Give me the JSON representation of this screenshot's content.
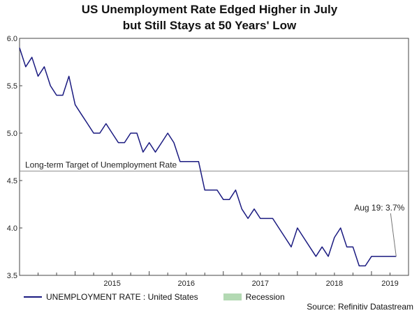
{
  "chart_data": {
    "type": "line",
    "title_lines": [
      "US Unemployment Rate Edged Higher in July",
      "but Still Stays at 50 Years' Low"
    ],
    "series": [
      {
        "name": "UNEMPLOYMENT RATE : United States",
        "color": "#1a1a80",
        "x": [
          2014.25,
          2014.3333,
          2014.4167,
          2014.5,
          2014.5833,
          2014.6667,
          2014.75,
          2014.8333,
          2014.9167,
          2015.0,
          2015.0833,
          2015.1667,
          2015.25,
          2015.3333,
          2015.4167,
          2015.5,
          2015.5833,
          2015.6667,
          2015.75,
          2015.8333,
          2015.9167,
          2016.0,
          2016.0833,
          2016.1667,
          2016.25,
          2016.3333,
          2016.4167,
          2016.5,
          2016.5833,
          2016.6667,
          2016.75,
          2016.8333,
          2016.9167,
          2017.0,
          2017.0833,
          2017.1667,
          2017.25,
          2017.3333,
          2017.4167,
          2017.5,
          2017.5833,
          2017.6667,
          2017.75,
          2017.8333,
          2017.9167,
          2018.0,
          2018.0833,
          2018.1667,
          2018.25,
          2018.3333,
          2018.4167,
          2018.5,
          2018.5833,
          2018.6667,
          2018.75,
          2018.8333,
          2018.9167,
          2019.0,
          2019.0833,
          2019.1667,
          2019.25,
          2019.3333
        ],
        "y": [
          5.9,
          5.7,
          5.8,
          5.6,
          5.7,
          5.5,
          5.4,
          5.4,
          5.6,
          5.3,
          5.2,
          5.1,
          5.0,
          5.0,
          5.1,
          5.0,
          4.9,
          4.9,
          5.0,
          5.0,
          4.8,
          4.9,
          4.8,
          4.9,
          5.0,
          4.9,
          4.7,
          4.7,
          4.7,
          4.7,
          4.4,
          4.4,
          4.4,
          4.3,
          4.3,
          4.4,
          4.2,
          4.1,
          4.2,
          4.1,
          4.1,
          4.1,
          4.0,
          3.9,
          3.8,
          4.0,
          3.9,
          3.8,
          3.7,
          3.8,
          3.7,
          3.9,
          4.0,
          3.8,
          3.8,
          3.6,
          3.6,
          3.7,
          3.7,
          3.7,
          3.7,
          3.7
        ]
      }
    ],
    "reference_line": {
      "value": 4.6,
      "label": "Long-term Target of Unemployment Rate",
      "color": "#8c8c8c"
    },
    "annotation": {
      "text": "Aug 19: 3.7%",
      "x": 2019.3333,
      "y": 3.7
    },
    "y_axis": {
      "min": 3.5,
      "max": 6.0,
      "ticks": [
        3.5,
        4.0,
        4.5,
        5.0,
        5.5,
        6.0
      ],
      "tick_labels": [
        "3.5",
        "4.0",
        "4.5",
        "5.0",
        "5.5",
        "6.0"
      ]
    },
    "x_axis": {
      "min": 2014.25,
      "max": 2019.5,
      "year_labels": [
        "2015",
        "2016",
        "2017",
        "2018",
        "2019"
      ],
      "year_label_positions": [
        2015.0,
        2016.0,
        2017.0,
        2018.0,
        2019.0
      ]
    },
    "legend": [
      {
        "label": "UNEMPLOYMENT RATE : United States",
        "kind": "line",
        "color": "#1a1a80"
      },
      {
        "label": "Recession",
        "kind": "box",
        "color": "#b3d9b3"
      }
    ],
    "source": "Source: Refinitiv Datastream"
  }
}
